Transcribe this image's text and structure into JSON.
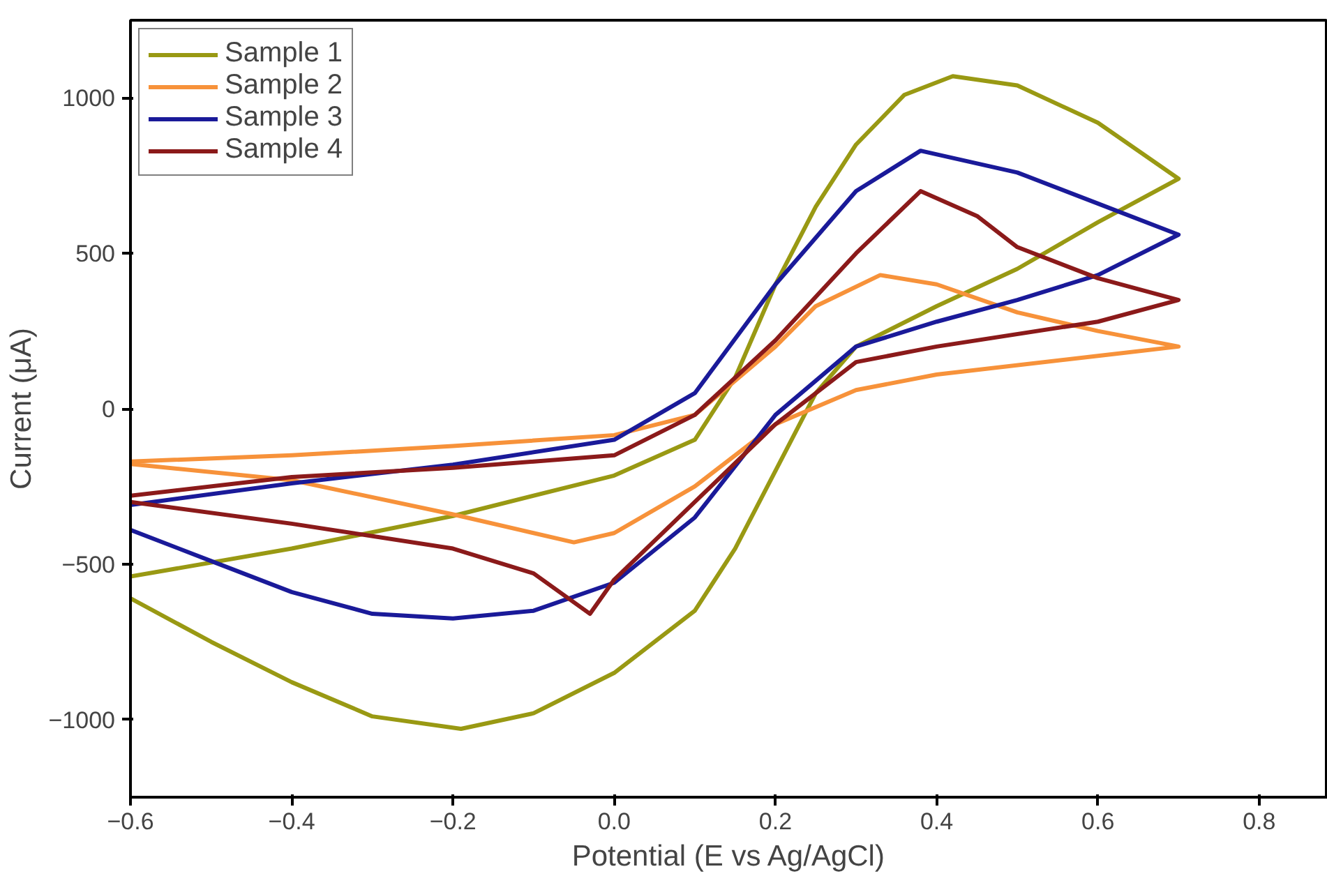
{
  "chart_data": {
    "type": "line",
    "xlabel": "Potential (E vs Ag/AgCl)",
    "ylabel": "Current (μA)",
    "xlim": [
      -0.6,
      0.885
    ],
    "ylim": [
      -1250,
      1250
    ],
    "xticks": [
      -0.6,
      -0.4,
      -0.2,
      {
        "value": 0,
        "label": "0.0"
      },
      0.2,
      0.4,
      0.6,
      0.8
    ],
    "yticks": [
      -1000,
      -500,
      0,
      500,
      1000
    ],
    "grid": false,
    "legend": "top left",
    "marker": "none",
    "line_style": "solid",
    "series": [
      {
        "name": "Sample 1",
        "color": "#999913",
        "x": [
          -0.6,
          -0.4,
          -0.2,
          0.0,
          0.1,
          0.15,
          0.2,
          0.25,
          0.3,
          0.36,
          0.42,
          0.5,
          0.6,
          0.7,
          0.6,
          0.5,
          0.4,
          0.3,
          0.25,
          0.2,
          0.15,
          0.1,
          0.0,
          -0.1,
          -0.19,
          -0.3,
          -0.4,
          -0.5,
          -0.6
        ],
        "values": [
          -540,
          -450,
          -345,
          -215,
          -100,
          100,
          400,
          650,
          850,
          1010,
          1070,
          1040,
          920,
          740,
          600,
          450,
          330,
          200,
          50,
          -200,
          -450,
          -650,
          -850,
          -980,
          -1030,
          -990,
          -880,
          -750,
          -610
        ]
      },
      {
        "name": "Sample 2",
        "color": "#f7923a",
        "x": [
          -0.6,
          -0.4,
          -0.2,
          0.0,
          0.1,
          0.2,
          0.25,
          0.33,
          0.4,
          0.5,
          0.6,
          0.7,
          0.6,
          0.4,
          0.3,
          0.2,
          0.1,
          0.0,
          -0.05,
          -0.2,
          -0.4,
          -0.6
        ],
        "values": [
          -170,
          -150,
          -120,
          -85,
          -20,
          200,
          330,
          430,
          400,
          310,
          250,
          200,
          170,
          110,
          60,
          -50,
          -250,
          -400,
          -430,
          -340,
          -230,
          -178
        ]
      },
      {
        "name": "Sample 3",
        "color": "#1a1a99",
        "x": [
          -0.6,
          -0.4,
          -0.2,
          0.0,
          0.1,
          0.2,
          0.3,
          0.38,
          0.5,
          0.6,
          0.7,
          0.6,
          0.5,
          0.4,
          0.3,
          0.2,
          0.1,
          0.0,
          -0.1,
          -0.2,
          -0.3,
          -0.4,
          -0.5,
          -0.6
        ],
        "values": [
          -310,
          -240,
          -180,
          -100,
          50,
          400,
          700,
          830,
          760,
          660,
          560,
          430,
          350,
          280,
          200,
          -20,
          -350,
          -560,
          -650,
          -675,
          -660,
          -590,
          -490,
          -390
        ]
      },
      {
        "name": "Sample 4",
        "color": "#8b1a1a",
        "x": [
          -0.6,
          -0.4,
          -0.2,
          0.0,
          0.1,
          0.2,
          0.3,
          0.38,
          0.45,
          0.5,
          0.6,
          0.7,
          0.6,
          0.4,
          0.3,
          0.2,
          0.1,
          0.0,
          -0.03,
          -0.1,
          -0.2,
          -0.4,
          -0.6
        ],
        "values": [
          -280,
          -220,
          -190,
          -150,
          -20,
          220,
          500,
          700,
          620,
          520,
          420,
          350,
          280,
          200,
          150,
          -50,
          -300,
          -550,
          -660,
          -530,
          -450,
          -370,
          -300
        ]
      }
    ]
  }
}
